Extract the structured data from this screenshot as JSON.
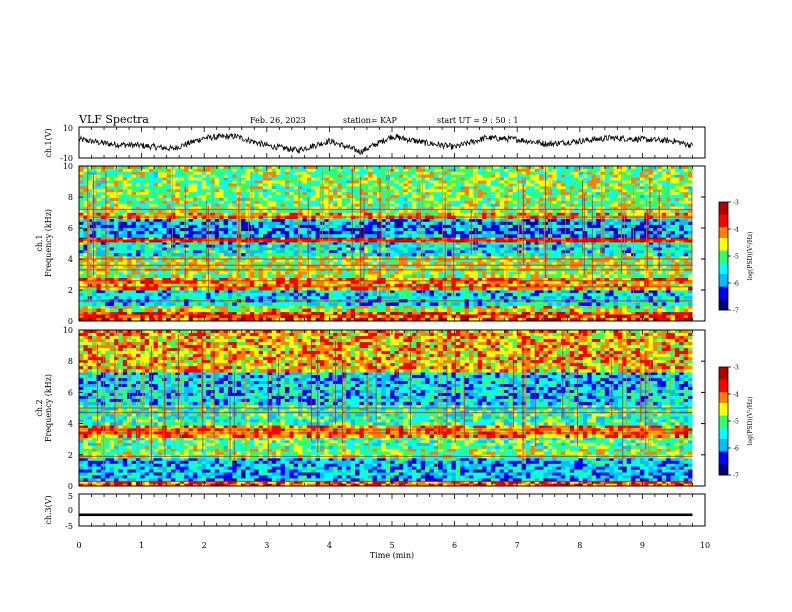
{
  "header": {
    "title": "VLF Spectra",
    "date": "Feb. 26, 2023",
    "station": "station= KAP",
    "start_time": "start  UT  =   9 : 50 : 1"
  },
  "colors": {
    "colormap": [
      "#000080",
      "#0000ff",
      "#00bfff",
      "#00ffff",
      "#33ff66",
      "#ffff00",
      "#ff8000",
      "#ff0000",
      "#b00000"
    ],
    "waveform": "#000000"
  },
  "chart_data": [
    {
      "type": "line",
      "id": "ch1_waveform",
      "ylabel": "ch.1(V)",
      "ylim": [
        -10,
        10
      ],
      "yticks": [
        10,
        -10
      ],
      "description_of_trace": "noisy black trace fluctuating roughly between -6 and +6 V",
      "x": [
        0,
        0.5,
        1,
        1.5,
        2,
        2.5,
        3,
        3.5,
        4,
        4.5,
        5,
        5.5,
        6,
        6.5,
        7,
        7.5,
        8,
        8.5,
        9,
        9.5,
        9.8
      ],
      "y": [
        2,
        -1,
        -2,
        -4,
        3,
        4,
        -2,
        -5,
        1,
        -6,
        4,
        0,
        -3,
        3,
        2,
        -1,
        1,
        3,
        2,
        1,
        -2
      ]
    },
    {
      "type": "heatmap",
      "id": "ch1_spectrogram",
      "ylabel": "ch.1\nFrequency (kHz)",
      "ylim": [
        0,
        10
      ],
      "yticks": [
        0,
        2,
        4,
        6,
        8,
        10
      ],
      "xlim": [
        0,
        9.8
      ],
      "colorbar": {
        "label": "log(PSD)(V²/Hz)",
        "range": [
          -7,
          -3
        ],
        "ticks": [
          -3,
          -4,
          -5,
          -6,
          -7
        ]
      },
      "bands": [
        {
          "f": [
            0.0,
            0.6
          ],
          "level": -3.8
        },
        {
          "f": [
            0.6,
            1.0
          ],
          "level": -4.6
        },
        {
          "f": [
            1.0,
            2.0
          ],
          "level": -5.6
        },
        {
          "f": [
            2.0,
            2.8
          ],
          "level": -4.2
        },
        {
          "f": [
            2.8,
            4.2
          ],
          "level": -4.7
        },
        {
          "f": [
            4.2,
            5.1
          ],
          "level": -5.5
        },
        {
          "f": [
            5.1,
            5.4
          ],
          "level": -3.6
        },
        {
          "f": [
            5.4,
            6.6
          ],
          "level": -5.9
        },
        {
          "f": [
            6.6,
            7.0
          ],
          "level": -4.3
        },
        {
          "f": [
            7.0,
            10.0
          ],
          "level": -4.9
        }
      ],
      "lines_khz": [
        0.4,
        1.3,
        2.2,
        2.6,
        3.3,
        3.6,
        4.0,
        5.2,
        6.7,
        7.2
      ]
    },
    {
      "type": "heatmap",
      "id": "ch2_spectrogram",
      "ylabel": "ch.2\nFrequency (kHz)",
      "ylim": [
        0,
        10
      ],
      "yticks": [
        0,
        2,
        4,
        6,
        8,
        10
      ],
      "xlim": [
        0,
        9.8
      ],
      "colorbar": {
        "label": "log(PSD)(V²/Hz)",
        "range": [
          -7,
          -3
        ],
        "ticks": [
          -3,
          -4,
          -5,
          -6,
          -7
        ]
      },
      "bands": [
        {
          "f": [
            0.0,
            0.3
          ],
          "level": -3.9
        },
        {
          "f": [
            0.3,
            1.8
          ],
          "level": -5.8
        },
        {
          "f": [
            1.8,
            2.4
          ],
          "level": -4.8
        },
        {
          "f": [
            2.4,
            3.1
          ],
          "level": -5.1
        },
        {
          "f": [
            3.1,
            3.9
          ],
          "level": -4.1
        },
        {
          "f": [
            3.9,
            5.2
          ],
          "level": -5.3
        },
        {
          "f": [
            5.2,
            7.3
          ],
          "level": -5.7
        },
        {
          "f": [
            7.3,
            10.0
          ],
          "level": -4.3
        }
      ],
      "lines_khz": [
        0.3,
        1.9,
        3.4,
        3.6,
        4.7,
        5.0
      ]
    },
    {
      "type": "line",
      "id": "ch3_waveform",
      "ylabel": "ch.3(V)",
      "ylim": [
        -5,
        5
      ],
      "yticks": [
        5,
        0,
        -5
      ],
      "x": [
        0,
        9.8
      ],
      "y": [
        -1.5,
        -1.5
      ],
      "band_halfwidth": 0.4
    }
  ],
  "xaxis": {
    "label": "Time  (min)",
    "xlim": [
      0,
      10
    ],
    "ticks": [
      "0",
      "1",
      "2",
      "3",
      "4",
      "5",
      "6",
      "7",
      "8",
      "9",
      "10"
    ]
  }
}
